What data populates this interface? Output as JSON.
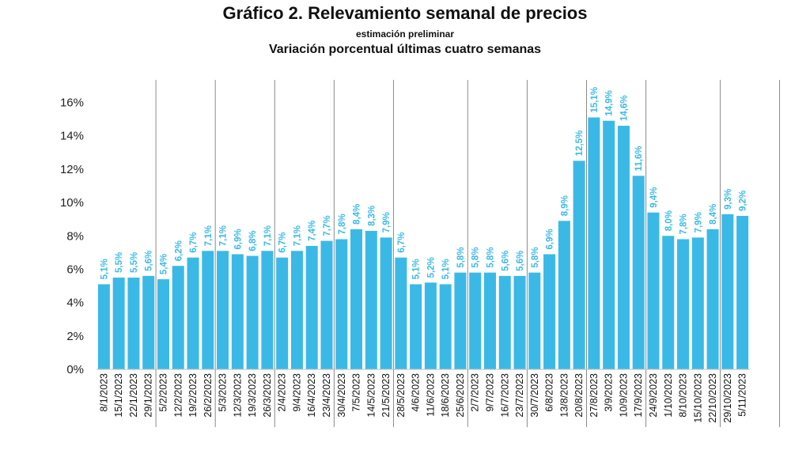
{
  "chart_data": {
    "type": "bar",
    "title": "Gráfico 2. Relevamiento semanal de precios",
    "subtitle": "estimación preliminar",
    "subtitle2": "Variación porcentual últimas cuatro semanas",
    "xlabel": "",
    "ylabel": "",
    "ylim": [
      0,
      17
    ],
    "yticks": [
      0,
      2,
      4,
      6,
      8,
      10,
      12,
      14,
      16
    ],
    "ytick_labels": [
      "0%",
      "2%",
      "4%",
      "6%",
      "8%",
      "10%",
      "12%",
      "14%",
      "16%"
    ],
    "grid": false,
    "bar_color": "#3BB9E6",
    "label_color": "#3BB9E6",
    "separator_color": "#8a8a8a",
    "month_separators_after_index": [
      3,
      7,
      11,
      15,
      19,
      24,
      28,
      32,
      36,
      41,
      45
    ],
    "categories": [
      "8/1/2023",
      "15/1/2023",
      "22/1/2023",
      "29/1/2023",
      "5/2/2023",
      "12/2/2023",
      "19/2/2023",
      "26/2/2023",
      "5/3/2023",
      "12/3/2023",
      "19/3/2023",
      "26/3/2023",
      "2/4/2023",
      "9/4/2023",
      "16/4/2023",
      "23/4/2023",
      "30/4/2023",
      "7/5/2023",
      "14/5/2023",
      "21/5/2023",
      "28/5/2023",
      "4/6/2023",
      "11/6/2023",
      "18/6/2023",
      "25/6/2023",
      "2/7/2023",
      "9/7/2023",
      "16/7/2023",
      "23/7/2023",
      "30/7/2023",
      "6/8/2023",
      "13/8/2023",
      "20/8/2023",
      "27/8/2023",
      "3/9/2023",
      "10/9/2023",
      "17/9/2023",
      "24/9/2023",
      "1/10/2023",
      "8/10/2023",
      "15/10/2023",
      "22/10/2023",
      "29/10/2023",
      "5/11/2023"
    ],
    "values": [
      5.1,
      5.5,
      5.5,
      5.6,
      5.4,
      6.2,
      6.7,
      7.1,
      7.1,
      6.9,
      6.8,
      7.1,
      6.7,
      7.1,
      7.4,
      7.7,
      7.8,
      8.4,
      8.3,
      7.9,
      6.7,
      5.1,
      5.2,
      5.1,
      5.8,
      5.8,
      5.8,
      5.6,
      5.6,
      5.8,
      6.9,
      8.9,
      12.5,
      15.1,
      14.9,
      14.6,
      11.6,
      9.4,
      8.0,
      7.8,
      7.9,
      8.4,
      9.3,
      9.2
    ],
    "data_labels": [
      "5,1%",
      "5,5%",
      "5,5%",
      "5,6%",
      "5,4%",
      "6,2%",
      "6,7%",
      "7,1%",
      "7,1%",
      "6,9%",
      "6,8%",
      "7,1%",
      "6,7%",
      "7,1%",
      "7,4%",
      "7,7%",
      "7,8%",
      "8,4%",
      "8,3%",
      "7,9%",
      "6,7%",
      "5,1%",
      "5,2%",
      "5,1%",
      "5,8%",
      "5,8%",
      "5,8%",
      "5,6%",
      "5,6%",
      "5,8%",
      "6,9%",
      "8,9%",
      "12,5%",
      "15,1%",
      "14,9%",
      "14,6%",
      "11,6%",
      "9,4%",
      "8,0%",
      "7,8%",
      "7,9%",
      "8,4%",
      "9,3%",
      "9,2%"
    ]
  }
}
